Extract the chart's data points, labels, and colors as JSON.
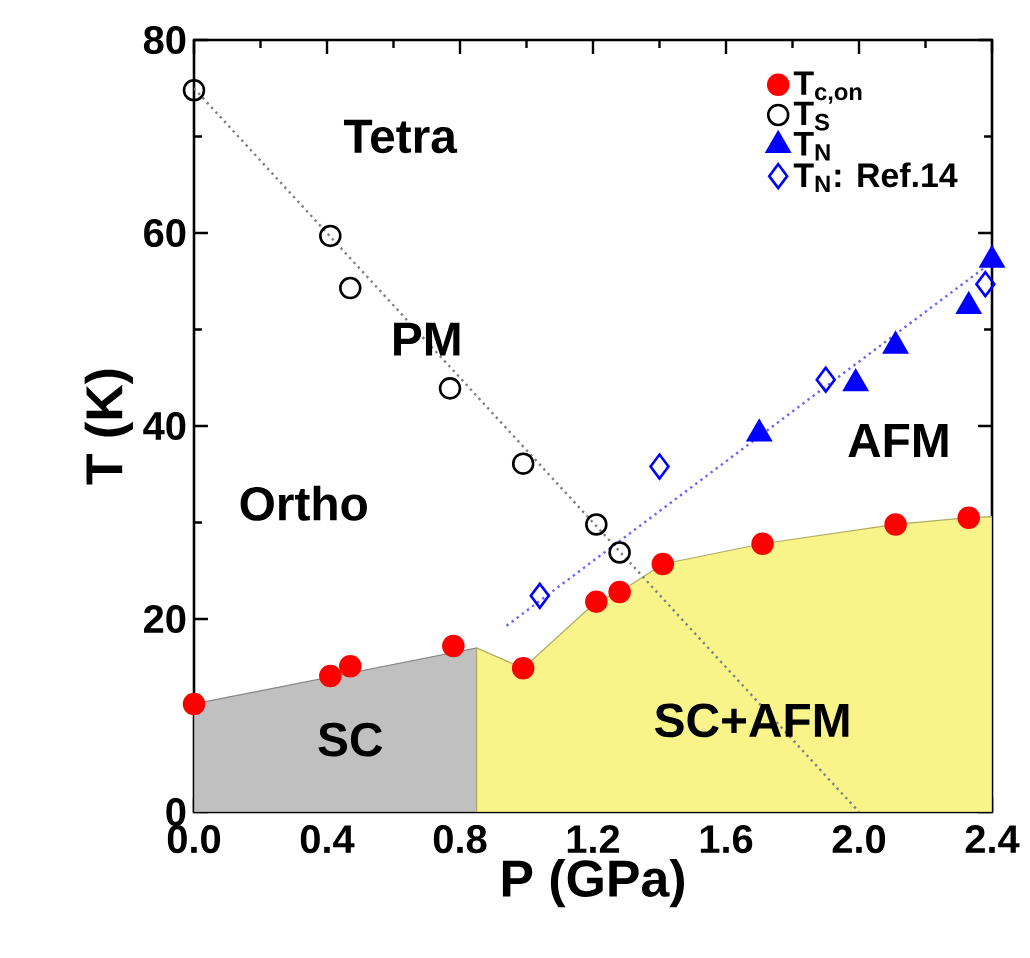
{
  "chart_data": {
    "type": "scatter",
    "xlabel": "P (GPa)",
    "ylabel": "T (K)",
    "xlim": [
      0,
      2.4
    ],
    "ylim": [
      0,
      80
    ],
    "xticks": [
      {
        "value": 0,
        "label": "0.0"
      },
      {
        "value": 0.4,
        "label": "0.4"
      },
      {
        "value": 0.8,
        "label": "0.8"
      },
      {
        "value": 1.2,
        "label": "1.2"
      },
      {
        "value": 1.6,
        "label": "1.6"
      },
      {
        "value": 2.0,
        "label": "2.0"
      },
      {
        "value": 2.4,
        "label": "2.4"
      }
    ],
    "yticks": [
      0,
      20,
      40,
      60,
      80
    ],
    "legend": "top right",
    "annotations": [
      "Tetra",
      "PM",
      "Ortho",
      "AFM",
      "SC",
      "SC+AFM"
    ],
    "series": [
      {
        "type": "area",
        "color": "#c0c0c0",
        "x": [
          0,
          0.85
        ],
        "values": [
          11.2,
          17
        ]
      },
      {
        "type": "area",
        "color": "#f8f48a",
        "x": [
          0.85,
          0.99,
          1.21,
          1.28,
          1.41,
          1.71,
          2.11,
          2.33,
          2.4
        ],
        "values": [
          17,
          14.9,
          21.8,
          22.8,
          25.7,
          27.8,
          29.8,
          30.5,
          30.6
        ]
      },
      {
        "type": "line",
        "color": "#808080",
        "line_style": "dotted",
        "x": [
          0,
          2.0
        ],
        "values": [
          75,
          0
        ]
      },
      {
        "type": "line",
        "color": "#6666ff",
        "line_style": "dotted",
        "x": [
          0.94,
          2.4
        ],
        "values": [
          19.3,
          57
        ]
      },
      {
        "name": "T$_{c,on}$",
        "color": "#ff0000",
        "marker": "circle",
        "x": [
          0,
          0.41,
          0.47,
          0.78,
          0.99,
          1.21,
          1.28,
          1.41,
          1.71,
          2.11,
          2.33
        ],
        "values": [
          11.2,
          14.1,
          15.1,
          17.2,
          14.9,
          21.8,
          22.8,
          25.7,
          27.8,
          29.8,
          30.5
        ]
      },
      {
        "name": "T$_{S}$",
        "color": "#000000",
        "marker": "circle",
        "x": [
          0,
          0.41,
          0.47,
          0.77,
          0.99,
          1.21,
          1.28
        ],
        "values": [
          74.8,
          59.7,
          54.3,
          43.9,
          36.1,
          29.8,
          26.9
        ]
      },
      {
        "name": "T$_{N}$",
        "color": "#0000ff",
        "marker": "triangle",
        "x": [
          1.7,
          1.99,
          2.11,
          2.33,
          2.4
        ],
        "values": [
          39.2,
          44.4,
          48.3,
          52.4,
          57.2
        ]
      },
      {
        "name": "T$_{N}$: Ref.14",
        "color": "#0000ff",
        "marker": "diamond",
        "x": [
          1.04,
          1.4,
          1.9,
          2.38
        ],
        "values": [
          22.4,
          35.8,
          44.8,
          54.7
        ]
      }
    ]
  }
}
